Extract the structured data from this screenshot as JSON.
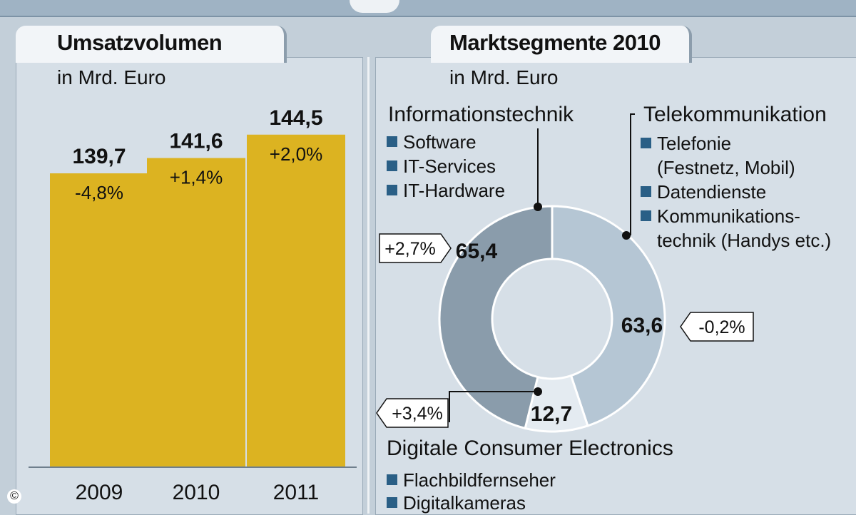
{
  "left_panel": {
    "title": "Umsatzvolumen",
    "subtitle": "in Mrd. Euro"
  },
  "right_panel": {
    "title": "Marktsegmente 2010",
    "subtitle": "in Mrd. Euro",
    "segments": {
      "it": {
        "title": "Informationstechnik",
        "items": [
          "Software",
          "IT-Services",
          "IT-Hardware"
        ]
      },
      "tk": {
        "title": "Telekommunikation",
        "items": [
          "Telefonie",
          "(Festnetz, Mobil)",
          "Datendienste",
          "Kommunikations-",
          "technik (Handys etc.)"
        ]
      },
      "ce": {
        "title": "Digitale Consumer Electronics",
        "items": [
          "Flachbildfernseher",
          "Digitalkameras"
        ]
      }
    }
  },
  "copyright_symbol": "©",
  "colors": {
    "bar": "#dcb321",
    "it_slice": "#8a9cab",
    "tk_slice": "#b5c6d4",
    "ce_slice": "#e4ebf1",
    "legend_square": "#2a5f86"
  },
  "chart_data": [
    {
      "type": "bar",
      "title": "Umsatzvolumen",
      "subtitle": "in Mrd. Euro",
      "categories": [
        "2009",
        "2010",
        "2011"
      ],
      "values": [
        139.7,
        141.6,
        144.5
      ],
      "value_labels": [
        "139,7",
        "141,6",
        "144,5"
      ],
      "change_labels": [
        "-4,8%",
        "+1,4%",
        "+2,0%"
      ],
      "ylim": [
        0,
        150
      ]
    },
    {
      "type": "pie",
      "title": "Marktsegmente 2010",
      "subtitle": "in Mrd. Euro",
      "donut": true,
      "slices": [
        {
          "label": "Telekommunikation",
          "value": 63.6,
          "value_label": "63,6",
          "change": "-0,2%"
        },
        {
          "label": "Digitale Consumer Electronics",
          "value": 12.7,
          "value_label": "12,7",
          "change": "+3,4%"
        },
        {
          "label": "Informationstechnik",
          "value": 65.4,
          "value_label": "65,4",
          "change": "+2,7%"
        }
      ]
    }
  ]
}
